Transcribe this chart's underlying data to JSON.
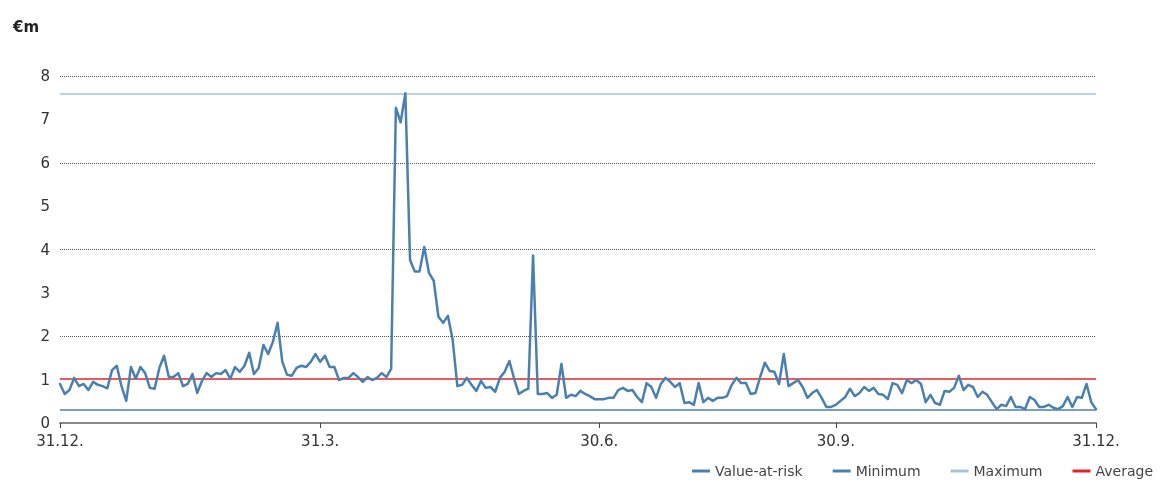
{
  "chart_data": {
    "type": "line",
    "ylabel": "€m",
    "categories": [
      "31.12.",
      null,
      null,
      null,
      null,
      null,
      null,
      null,
      null,
      null,
      null,
      null,
      null,
      null,
      null,
      null,
      null,
      null,
      null,
      null,
      null,
      null,
      null,
      null,
      null,
      null,
      null,
      null,
      null,
      null,
      null,
      null,
      null,
      null,
      null,
      null,
      null,
      null,
      null,
      null,
      null,
      null,
      null,
      null,
      null,
      null,
      null,
      null,
      null,
      null,
      null,
      null,
      null,
      null,
      null,
      "31.3.",
      null,
      null,
      null,
      null,
      null,
      null,
      null,
      null,
      null,
      null,
      null,
      null,
      null,
      null,
      null,
      null,
      null,
      null,
      null,
      null,
      null,
      null,
      null,
      null,
      null,
      null,
      null,
      null,
      null,
      null,
      null,
      null,
      null,
      null,
      null,
      null,
      null,
      null,
      null,
      null,
      null,
      null,
      null,
      null,
      null,
      null,
      null,
      null,
      null,
      null,
      null,
      null,
      null,
      null,
      null,
      null,
      null,
      null,
      "30.6.",
      null,
      null,
      null,
      null,
      null,
      null,
      null,
      null,
      null,
      null,
      null,
      null,
      null,
      null,
      null,
      null,
      null,
      null,
      null,
      null,
      null,
      null,
      null,
      null,
      null,
      null,
      null,
      null,
      null,
      null,
      null,
      null,
      null,
      null,
      null,
      null,
      null,
      null,
      null,
      null,
      null,
      null,
      null,
      null,
      null,
      null,
      null,
      null,
      null,
      "30.9.",
      null,
      null,
      null,
      null,
      null,
      null,
      null,
      null,
      null,
      null,
      null,
      null,
      null,
      null,
      null,
      null,
      null,
      null,
      null,
      null,
      null,
      null,
      null,
      null,
      null,
      null,
      null,
      null,
      null,
      null,
      null,
      null,
      null,
      null,
      null,
      null,
      null,
      null,
      null,
      null,
      null,
      null,
      null,
      null,
      null,
      null,
      null,
      null,
      null,
      null,
      null,
      null,
      null,
      null,
      "31.12."
    ],
    "ylim": [
      0,
      8
    ],
    "yticks": [
      0,
      1,
      2,
      3,
      4,
      5,
      6,
      7,
      8
    ],
    "grid": "y",
    "legend": "bottom right",
    "marker": "none",
    "line_style": "solid",
    "series": [
      {
        "name": "Value-at-risk",
        "color": "#4a80b0",
        "values": [
          0.9,
          0.67,
          0.76,
          1.04,
          0.85,
          0.9,
          0.76,
          0.95,
          0.88,
          0.85,
          0.8,
          1.22,
          1.32,
          0.85,
          0.51,
          1.29,
          1.02,
          1.29,
          1.15,
          0.81,
          0.79,
          1.27,
          1.55,
          1.06,
          1.06,
          1.15,
          0.85,
          0.9,
          1.13,
          0.69,
          0.97,
          1.15,
          1.06,
          1.15,
          1.13,
          1.22,
          1.02,
          1.29,
          1.18,
          1.32,
          1.62,
          1.13,
          1.27,
          1.8,
          1.59,
          1.87,
          2.31,
          1.41,
          1.11,
          1.09,
          1.27,
          1.32,
          1.29,
          1.41,
          1.59,
          1.41,
          1.55,
          1.29,
          1.29,
          0.99,
          1.04,
          1.04,
          1.15,
          1.06,
          0.95,
          1.06,
          0.99,
          1.04,
          1.15,
          1.06,
          1.25,
          7.27,
          6.93,
          7.6,
          3.76,
          3.49,
          3.49,
          4.06,
          3.46,
          3.28,
          2.45,
          2.31,
          2.47,
          1.92,
          0.85,
          0.88,
          1.04,
          0.88,
          0.74,
          0.97,
          0.81,
          0.83,
          0.72,
          1.04,
          1.18,
          1.43,
          1.02,
          0.67,
          0.74,
          0.79,
          3.86,
          0.67,
          0.67,
          0.69,
          0.58,
          0.65,
          1.36,
          0.58,
          0.65,
          0.62,
          0.74,
          0.67,
          0.62,
          0.55,
          0.55,
          0.55,
          0.58,
          0.58,
          0.76,
          0.81,
          0.74,
          0.76,
          0.6,
          0.48,
          0.92,
          0.83,
          0.58,
          0.9,
          1.04,
          0.95,
          0.83,
          0.92,
          0.46,
          0.48,
          0.42,
          0.92,
          0.48,
          0.58,
          0.51,
          0.58,
          0.58,
          0.62,
          0.88,
          1.04,
          0.92,
          0.92,
          0.67,
          0.69,
          1.06,
          1.39,
          1.2,
          1.18,
          0.9,
          1.59,
          0.85,
          0.92,
          0.99,
          0.83,
          0.58,
          0.69,
          0.76,
          0.58,
          0.37,
          0.37,
          0.42,
          0.51,
          0.6,
          0.79,
          0.62,
          0.69,
          0.83,
          0.74,
          0.81,
          0.67,
          0.65,
          0.55,
          0.92,
          0.88,
          0.69,
          0.99,
          0.92,
          0.99,
          0.9,
          0.48,
          0.65,
          0.46,
          0.42,
          0.74,
          0.72,
          0.81,
          1.09,
          0.76,
          0.88,
          0.83,
          0.6,
          0.72,
          0.65,
          0.48,
          0.32,
          0.42,
          0.39,
          0.6,
          0.37,
          0.37,
          0.32,
          0.6,
          0.53,
          0.37,
          0.37,
          0.42,
          0.35,
          0.32,
          0.39,
          0.6,
          0.37,
          0.6,
          0.58,
          0.9,
          0.48,
          0.32
        ]
      }
    ],
    "ref_lines": [
      {
        "axis": "y",
        "value": 0.3,
        "label": "Minimum",
        "color": "#4a80b0"
      },
      {
        "axis": "y",
        "value": 7.6,
        "label": "Maximum",
        "color": "#a8c3dc"
      },
      {
        "axis": "y",
        "value": 1.02,
        "label": "Average",
        "color": "#e3242b"
      }
    ]
  }
}
